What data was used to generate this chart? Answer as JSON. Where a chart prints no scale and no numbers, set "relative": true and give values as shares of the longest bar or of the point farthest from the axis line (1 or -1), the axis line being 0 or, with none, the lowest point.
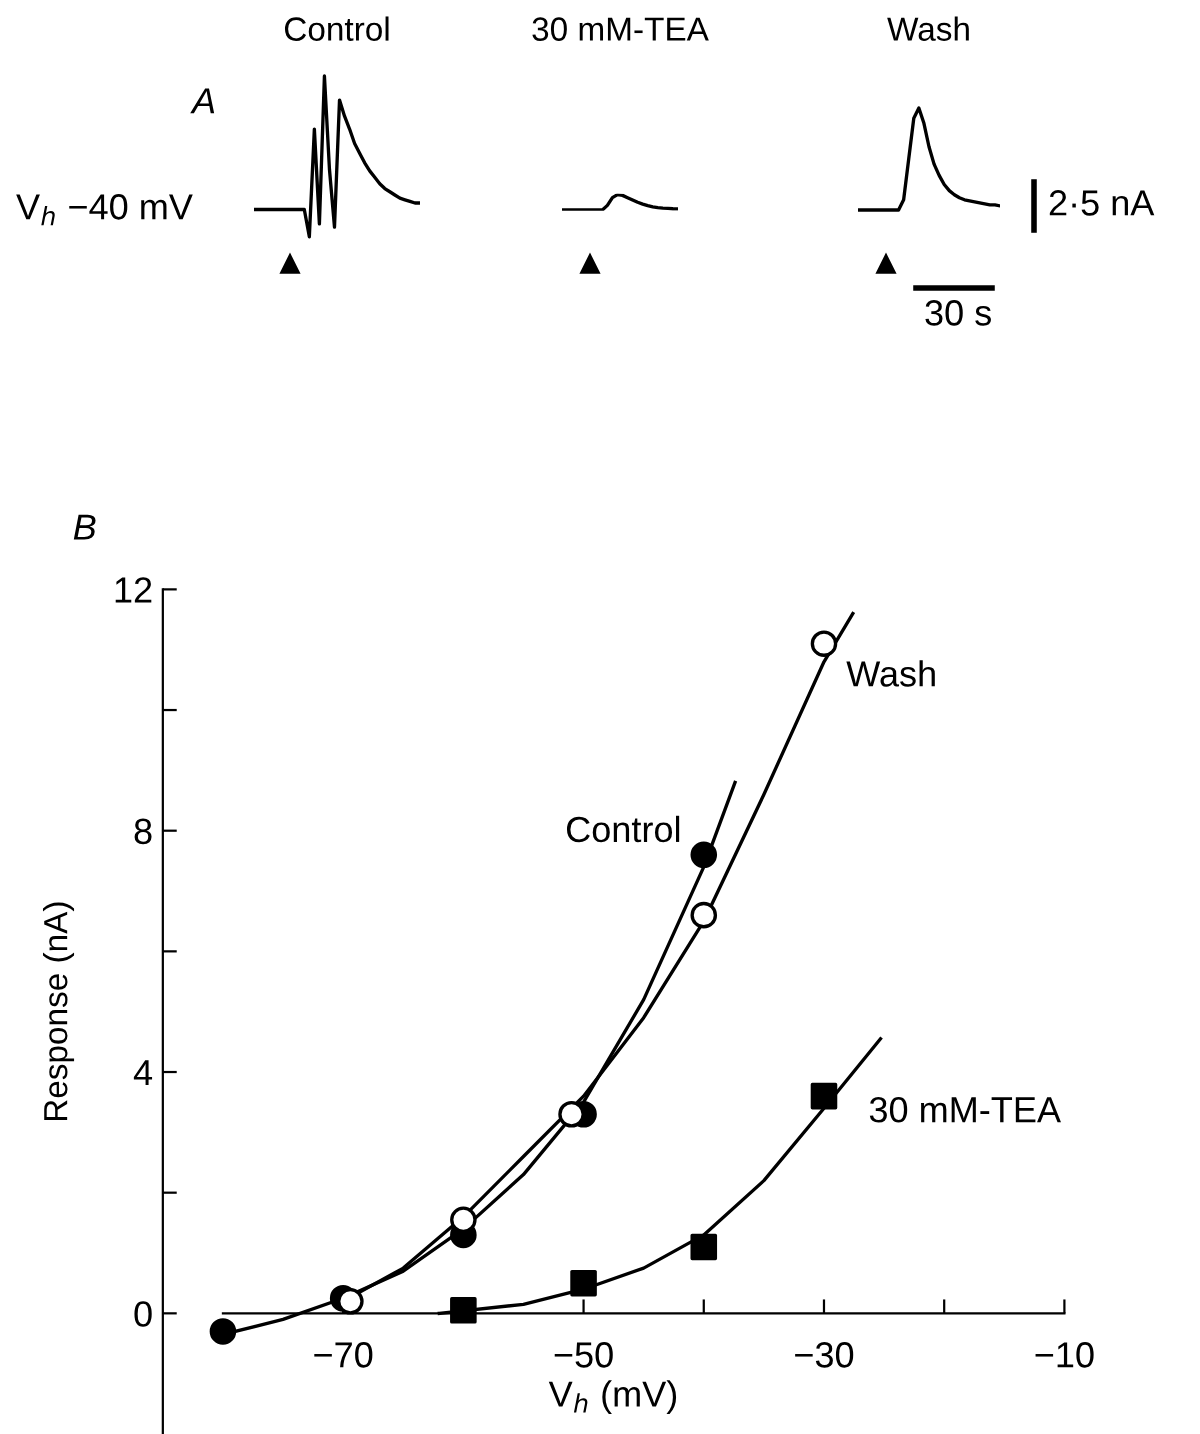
{
  "chart_data": [
    {
      "type": "line",
      "relative": true,
      "title": "Control",
      "annotations": [
        "A",
        "V$_{h}$ −40 mV"
      ],
      "color": "#000000",
      "categories": [
        null,
        null,
        null,
        null,
        null,
        null,
        null,
        null,
        null,
        null,
        null,
        null,
        null,
        null,
        null,
        null,
        null,
        null,
        null,
        null,
        null,
        null,
        null,
        null,
        null,
        null,
        null,
        null,
        null,
        null,
        null,
        null,
        null,
        null
      ],
      "values": [
        0.17,
        0.17,
        0.17,
        0.17,
        0.17,
        0.17,
        0.17,
        0.17,
        0.17,
        0.17,
        0.17,
        0,
        0.67,
        0.08,
        1.0,
        0.42,
        0.06,
        0.85,
        0.75,
        0.67,
        0.58,
        0.52,
        0.46,
        0.41,
        0.37,
        0.33,
        0.3,
        0.28,
        0.26,
        0.24,
        0.23,
        0.22,
        0.21,
        0.21
      ]
    },
    {
      "type": "line",
      "relative": true,
      "title": "30 mM-TEA",
      "color": "#000000",
      "categories": [
        null,
        null,
        null,
        null,
        null,
        null,
        null,
        null,
        null,
        null,
        null,
        null,
        null,
        null,
        null,
        null,
        null,
        null,
        null,
        null,
        null,
        null,
        null,
        null
      ],
      "values": [
        0,
        0,
        0,
        0,
        0,
        0,
        0,
        0,
        0,
        0.3,
        0.8,
        1.0,
        0.95,
        0.8,
        0.65,
        0.5,
        0.38,
        0.28,
        0.2,
        0.15,
        0.12,
        0.1,
        0.08,
        0.07
      ]
    },
    {
      "type": "line",
      "relative": true,
      "title": "Wash",
      "annotations": [
        "2·5 nA",
        "30 s"
      ],
      "color": "#000000",
      "categories": [
        null,
        null,
        null,
        null,
        null,
        null,
        null,
        null,
        null,
        null,
        null,
        null,
        null,
        null,
        null,
        null,
        null,
        null,
        null,
        null,
        null,
        null,
        null,
        null,
        null,
        null,
        null,
        null,
        null
      ],
      "values": [
        0,
        0,
        0,
        0,
        0,
        0,
        0,
        0,
        0,
        0.1,
        0.5,
        0.9,
        1.0,
        0.85,
        0.62,
        0.45,
        0.34,
        0.25,
        0.19,
        0.15,
        0.12,
        0.1,
        0.09,
        0.08,
        0.07,
        0.06,
        0.05,
        0.05,
        0.04
      ]
    },
    {
      "type": "scatter",
      "xlabel": "V$_{h}$ (mV)",
      "ylabel": "Response (nA)",
      "annotations": [
        "B"
      ],
      "xlim": [
        -85,
        -10
      ],
      "ylim": [
        -2,
        12
      ],
      "xticks": [
        {
          "value": -70,
          "label": "−70"
        },
        {
          "value": -60,
          "label": null
        },
        {
          "value": -50,
          "label": "−50"
        },
        {
          "value": -40,
          "label": null
        },
        {
          "value": -30,
          "label": "−30"
        },
        {
          "value": -20,
          "label": null
        },
        {
          "value": -10,
          "label": "−10"
        }
      ],
      "yticks": [
        0,
        {
          "value": 2,
          "label": null
        },
        4,
        {
          "value": 6,
          "label": null
        },
        8,
        {
          "value": 10,
          "label": null
        },
        12
      ],
      "series": [
        {
          "name": "Control",
          "color": "#000000",
          "marker": "circle",
          "x": [
            -80,
            -70,
            -60,
            -50,
            -40
          ],
          "values": [
            -0.3,
            0.25,
            1.3,
            3.3,
            7.6
          ]
        },
        {
          "name": "Wash",
          "color": "#ffffff",
          "marker": "circle",
          "x": [
            -69.4,
            -60,
            -51,
            -40,
            -30
          ],
          "values": [
            0.2,
            1.55,
            3.3,
            6.6,
            11.1
          ]
        },
        {
          "name": "30 mM-TEA",
          "color": "#000000",
          "marker": "square",
          "x": [
            -60,
            -50,
            -40,
            -30
          ],
          "values": [
            0.05,
            0.5,
            1.1,
            3.6
          ]
        },
        {
          "type": "line",
          "color": "#000000",
          "x": [
            -80,
            -75,
            -70,
            -65,
            -60,
            -55,
            -50,
            -45,
            -40,
            -37.4
          ],
          "values": [
            -0.35,
            -0.1,
            0.25,
            0.7,
            1.4,
            2.3,
            3.5,
            5.2,
            7.4,
            8.8
          ]
        },
        {
          "type": "line",
          "color": "#000000",
          "x": [
            -70,
            -65,
            -60,
            -55,
            -50,
            -45,
            -40,
            -35,
            -30,
            -27.6
          ],
          "values": [
            0.2,
            0.75,
            1.6,
            2.6,
            3.6,
            4.9,
            6.5,
            8.6,
            10.8,
            11.6
          ]
        },
        {
          "type": "line",
          "color": "#000000",
          "x": [
            -62,
            -55,
            -50,
            -45,
            -40,
            -35,
            -30,
            -25.3
          ],
          "values": [
            0,
            0.15,
            0.4,
            0.75,
            1.3,
            2.2,
            3.4,
            4.55
          ]
        }
      ]
    }
  ]
}
